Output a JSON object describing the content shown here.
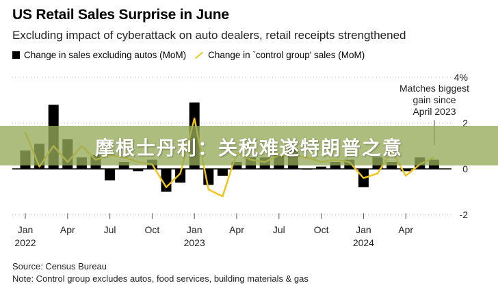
{
  "header": {
    "title": "US Retail Sales Surprise in June",
    "subtitle": "Excluding impact of cyberattack on auto dealers, retail receipts strengthened"
  },
  "legend": {
    "bar_label": "Change in sales excluding autos (MoM)",
    "line_label": "Change in `control group' sales (MoM)"
  },
  "banner": {
    "text": "摩根士丹利：关税难遂特朗普之意"
  },
  "annotation": {
    "lines": [
      "Matches biggest",
      "gain since",
      "April 2023"
    ]
  },
  "footer": {
    "source": "Source: Census Bureau",
    "note": "Note: Control group excludes autos, food services, building materials & gas"
  },
  "colors": {
    "bars": "#000000",
    "line": "#f0c419",
    "banner": "#96aa5a"
  },
  "chart_data": {
    "type": "bar",
    "x_ticks": [
      {
        "label": "Jan",
        "year": "2022",
        "index": 0
      },
      {
        "label": "Apr",
        "year": "",
        "index": 3
      },
      {
        "label": "Jul",
        "year": "",
        "index": 6
      },
      {
        "label": "Oct",
        "year": "",
        "index": 9
      },
      {
        "label": "Jan",
        "year": "2023",
        "index": 12
      },
      {
        "label": "Apr",
        "year": "",
        "index": 15
      },
      {
        "label": "Jul",
        "year": "",
        "index": 18
      },
      {
        "label": "Oct",
        "year": "",
        "index": 21
      },
      {
        "label": "Jan",
        "year": "2024",
        "index": 24
      },
      {
        "label": "Apr",
        "year": "",
        "index": 27
      }
    ],
    "y_ticks": [
      "4%",
      "2",
      "0",
      "-2"
    ],
    "ylim": [
      -2.5,
      4.3
    ],
    "y_tick_values": [
      4,
      2,
      0,
      -2
    ],
    "series": [
      {
        "name": "Change in sales excluding autos (MoM)",
        "type": "bar",
        "values": [
          0.8,
          1.1,
          2.8,
          1.3,
          0.5,
          0.6,
          -0.5,
          0.3,
          -0.1,
          0.4,
          -1.0,
          -0.6,
          2.9,
          -0.7,
          -0.3,
          0.3,
          0.5,
          0.5,
          0.6,
          0.9,
          0.0,
          0.1,
          0.3,
          0.4,
          -0.8,
          0.5,
          0.3,
          -0.1,
          0.5,
          0.4
        ]
      },
      {
        "name": "Change in `control group' sales (MoM)",
        "type": "line",
        "values": [
          1.6,
          0.1,
          1.0,
          0.3,
          1.0,
          0.4,
          0.6,
          0.5,
          0.3,
          0.2,
          -0.8,
          -0.2,
          2.2,
          -0.9,
          -1.2,
          0.7,
          0.4,
          0.3,
          0.6,
          0.6,
          0.5,
          0.3,
          0.4,
          0.3,
          -0.4,
          -0.2,
          0.8,
          -0.3,
          0.2,
          0.5
        ]
      }
    ]
  }
}
